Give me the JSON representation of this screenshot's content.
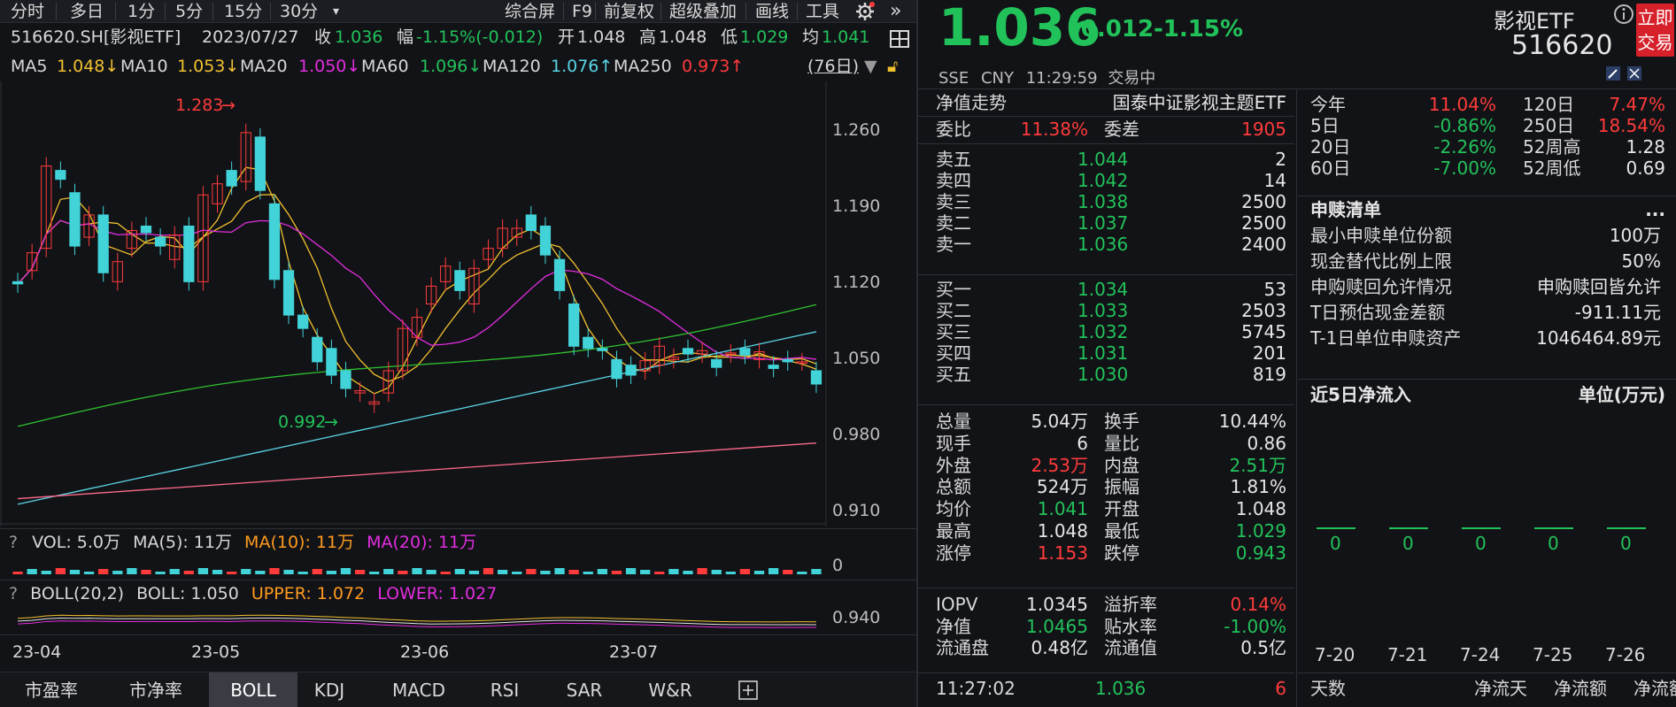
{
  "toolbar_left": {
    "tabs": [
      "分时",
      "多日",
      "1分",
      "5分",
      "15分",
      "30分"
    ],
    "dropdown_icon": "caret-down"
  },
  "toolbar_right": {
    "items": [
      "综合屏",
      "F9",
      "前复权",
      "超级叠加",
      "画线",
      "工具"
    ],
    "settings_icon": "gear",
    "collapse_icon": "double-chevron-right"
  },
  "info": {
    "code": "516620.SH[影视ETF]",
    "date": "2023/07/27",
    "close_label": "收",
    "close": "1.036",
    "change_label": "幅",
    "change": "-1.15%(-0.012)",
    "open_label": "开",
    "open": "1.048",
    "high_label": "高",
    "high": "1.048",
    "low_label": "低",
    "low": "1.029",
    "avg_label": "均",
    "avg": "1.041"
  },
  "ma": {
    "ma5_label": "MA5",
    "ma5": "1.048↓",
    "ma10_label": "MA10",
    "ma10": "1.053↓",
    "ma20_label": "MA20",
    "ma20": "1.050↓",
    "ma60_label": "MA60",
    "ma60": "1.096↓",
    "ma120_label": "MA120",
    "ma120": "1.076↑",
    "ma250_label": "MA250",
    "ma250": "0.973↑",
    "days": "(76日)"
  },
  "price_axis": [
    "1.260",
    "1.190",
    "1.120",
    "1.050",
    "0.980",
    "0.910"
  ],
  "annotations": {
    "high": "1.283",
    "low": "0.992"
  },
  "vol": {
    "q": "?",
    "text": "VOL: 5.0万",
    "ma5": "MA(5): 11万",
    "ma10": "MA(10): 11万",
    "ma20": "MA(20): 11万",
    "axis": "0"
  },
  "boll": {
    "q": "?",
    "name": "BOLL(20,2)",
    "boll": "BOLL: 1.050",
    "upper": "UPPER: 1.072",
    "lower": "LOWER: 1.027",
    "axis": "0.940"
  },
  "date_axis": [
    "23-04",
    "23-05",
    "23-06",
    "23-07"
  ],
  "bottom_tabs": [
    "市盈率",
    "市净率",
    "BOLL",
    "KDJ",
    "MACD",
    "RSI",
    "SAR",
    "W&R"
  ],
  "bottom_active": "BOLL",
  "side_toggle": "»",
  "quote": {
    "price": "1.036",
    "change": "-0.012",
    "pct": "-1.15%",
    "name": "影视ETF",
    "code": "516620",
    "trade_btn": "立即交易",
    "exchange": "SSE",
    "currency": "CNY",
    "time": "11:29:59",
    "status": "交易中"
  },
  "nav_header": {
    "left": "净值走势",
    "right": "国泰中证影视主题ETF"
  },
  "weibi": {
    "label": "委比",
    "value": "11.38%",
    "cha_label": "委差",
    "cha": "1905"
  },
  "asks": [
    {
      "label": "卖五",
      "price": "1.044",
      "vol": "2"
    },
    {
      "label": "卖四",
      "price": "1.042",
      "vol": "14"
    },
    {
      "label": "卖三",
      "price": "1.038",
      "vol": "2500"
    },
    {
      "label": "卖二",
      "price": "1.037",
      "vol": "2500"
    },
    {
      "label": "卖一",
      "price": "1.036",
      "vol": "2400"
    }
  ],
  "bids": [
    {
      "label": "买一",
      "price": "1.034",
      "vol": "53"
    },
    {
      "label": "买二",
      "price": "1.033",
      "vol": "2503"
    },
    {
      "label": "买三",
      "price": "1.032",
      "vol": "5745"
    },
    {
      "label": "买四",
      "price": "1.031",
      "vol": "201"
    },
    {
      "label": "买五",
      "price": "1.030",
      "vol": "819"
    }
  ],
  "stats": [
    {
      "l1": "总量",
      "v1": "5.04万",
      "c1": "white",
      "l2": "换手",
      "v2": "10.44%",
      "c2": "white"
    },
    {
      "l1": "现手",
      "v1": "6",
      "c1": "white",
      "l2": "量比",
      "v2": "0.86",
      "c2": "white"
    },
    {
      "l1": "外盘",
      "v1": "2.53万",
      "c1": "red",
      "l2": "内盘",
      "v2": "2.51万",
      "c2": "green"
    },
    {
      "l1": "总额",
      "v1": "524万",
      "c1": "white",
      "l2": "振幅",
      "v2": "1.81%",
      "c2": "white"
    },
    {
      "l1": "均价",
      "v1": "1.041",
      "c1": "green",
      "l2": "开盘",
      "v2": "1.048",
      "c2": "white"
    },
    {
      "l1": "最高",
      "v1": "1.048",
      "c1": "white",
      "l2": "最低",
      "v2": "1.029",
      "c2": "green"
    },
    {
      "l1": "涨停",
      "v1": "1.153",
      "c1": "red",
      "l2": "跌停",
      "v2": "0.943",
      "c2": "green"
    }
  ],
  "etf_stats": [
    {
      "l1": "IOPV",
      "v1": "1.0345",
      "c1": "white",
      "l2": "溢折率",
      "v2": "0.14%",
      "c2": "red"
    },
    {
      "l1": "净值",
      "v1": "1.0465",
      "c1": "green",
      "l2": "贴水率",
      "v2": "-1.00%",
      "c2": "green"
    },
    {
      "l1": "流通盘",
      "v1": "0.48亿",
      "c1": "white",
      "l2": "流通值",
      "v2": "0.5亿",
      "c2": "white"
    }
  ],
  "tick": {
    "time": "11:27:02",
    "price": "1.036",
    "vol": "6"
  },
  "perf": [
    {
      "l1": "今年",
      "v1": "11.04%",
      "c1": "red",
      "l2": "120日",
      "v2": "7.47%",
      "c2": "red"
    },
    {
      "l1": "5日",
      "v1": "-0.86%",
      "c1": "green",
      "l2": "250日",
      "v2": "18.54%",
      "c2": "red"
    },
    {
      "l1": "20日",
      "v1": "-2.26%",
      "c1": "green",
      "l2": "52周高",
      "v2": "1.28",
      "c2": "white"
    },
    {
      "l1": "60日",
      "v1": "-7.00%",
      "c1": "green",
      "l2": "52周低",
      "v2": "0.69",
      "c2": "white"
    }
  ],
  "redeem": {
    "title": "申赎清单",
    "more": "...",
    "rows": [
      {
        "label": "最小申赎单位份额",
        "value": "100万"
      },
      {
        "label": "现金替代比例上限",
        "value": "50%"
      },
      {
        "label": "申购赎回允许情况",
        "value": "申购赎回皆允许"
      },
      {
        "label": "T日预估现金差额",
        "value": "-911.11元"
      },
      {
        "label": "T-1日单位申赎资产",
        "value": "1046464.89元"
      }
    ]
  },
  "netflow": {
    "title": "近5日净流入",
    "unit": "单位(万元)",
    "values": [
      "0",
      "0",
      "0",
      "0",
      "0"
    ],
    "dates": [
      "7-20",
      "7-21",
      "7-24",
      "7-25",
      "7-26"
    ]
  },
  "bottom_right": [
    "天数",
    "净流天",
    "净流额",
    "净流额"
  ],
  "colors": {
    "up": "#ff3b3b",
    "down": "#22c25a",
    "bull_candle": "#ff3b3b",
    "bear_candle": "#41d3d8",
    "ma5": "#f2c12e",
    "ma10": "#f2c12e",
    "ma20": "#e22ddf",
    "ma60": "#2fc12f",
    "ma120": "#59d6e6",
    "ma250": "#ff6b8a"
  }
}
